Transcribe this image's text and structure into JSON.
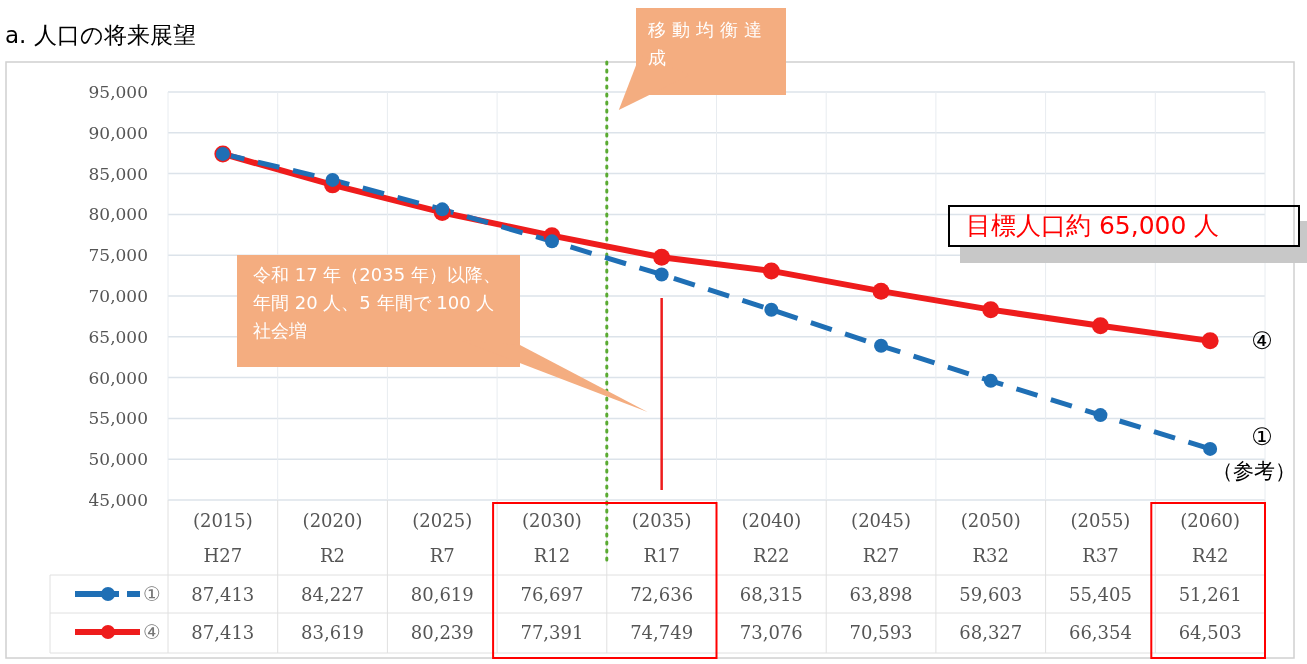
{
  "chart_data": {
    "type": "line",
    "title": "a. 人口の将来展望",
    "categories": [
      "(2015)\nH27",
      "(2020)\nR2",
      "(2025)\nR7",
      "(2030)\nR12",
      "(2035)\nR17",
      "(2040)\nR22",
      "(2045)\nR27",
      "(2050)\nR32",
      "(2055)\nR37",
      "(2060)\nR42"
    ],
    "series": [
      {
        "name": "①",
        "color": "#1f6fb5",
        "line_style": "dashed",
        "values": [
          87413,
          84227,
          80619,
          76697,
          72636,
          68315,
          63898,
          59603,
          55405,
          51261
        ],
        "value_labels": [
          "87,413",
          "84,227",
          "80,619",
          "76,697",
          "72,636",
          "68,315",
          "63,898",
          "59,603",
          "55,405",
          "51,261"
        ]
      },
      {
        "name": "④",
        "color": "#ee1c1c",
        "line_style": "solid",
        "values": [
          87413,
          83619,
          80239,
          77391,
          74749,
          73076,
          70593,
          68327,
          66354,
          64503
        ],
        "value_labels": [
          "87,413",
          "83,619",
          "80,239",
          "77,391",
          "74,749",
          "73,076",
          "70,593",
          "68,327",
          "66,354",
          "64,503"
        ]
      }
    ],
    "ylim": [
      45000,
      95000
    ],
    "yticks": [
      {
        "value": 45000,
        "label": "45,000"
      },
      {
        "value": 50000,
        "label": "50,000"
      },
      {
        "value": 55000,
        "label": "55,000"
      },
      {
        "value": 60000,
        "label": "60,000"
      },
      {
        "value": 65000,
        "label": "65,000"
      },
      {
        "value": 70000,
        "label": "70,000"
      },
      {
        "value": 75000,
        "label": "75,000"
      },
      {
        "value": 80000,
        "label": "80,000"
      },
      {
        "value": 85000,
        "label": "85,000"
      },
      {
        "value": 90000,
        "label": "90,000"
      },
      {
        "value": 95000,
        "label": "95,000"
      }
    ],
    "grid": true,
    "marker": "circle",
    "legend": "bottom left",
    "ref_lines": [
      {
        "axis": "x",
        "value": "(2030)\nR12",
        "color": "#5aaa32",
        "line_style": "dotted"
      }
    ],
    "annotations": [
      "移動均衡達成",
      "令和 17 年（2035 年）以降、年間 20 人、5 年間で 100 人社会増",
      "目標人口約 65,000 人",
      "（参考）"
    ]
  }
}
